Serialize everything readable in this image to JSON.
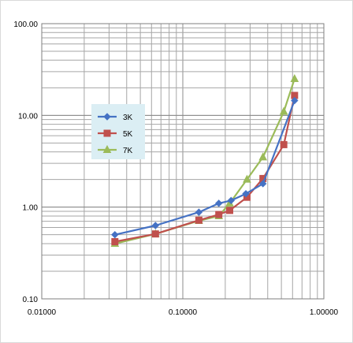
{
  "chart_data": {
    "type": "line",
    "title": "",
    "xlabel": "",
    "ylabel": "",
    "xscale": "log",
    "yscale": "log",
    "xlim": [
      0.01,
      1.0
    ],
    "ylim": [
      0.1,
      100.0
    ],
    "x_ticks": [
      "0.01000",
      "0.10000",
      "1.00000"
    ],
    "y_ticks": [
      "0.10",
      "1.00",
      "10.00",
      "100.00"
    ],
    "grid": true,
    "legend": {
      "placement": "center-left"
    },
    "series": [
      {
        "name": "3K",
        "color": "#4572c4",
        "marker": "diamond",
        "points": [
          [
            0.033,
            0.5
          ],
          [
            0.064,
            0.63
          ],
          [
            0.13,
            0.88
          ],
          [
            0.18,
            1.1
          ],
          [
            0.22,
            1.18
          ],
          [
            0.28,
            1.4
          ],
          [
            0.37,
            1.8
          ],
          [
            0.62,
            14.5
          ]
        ]
      },
      {
        "name": "5K",
        "color": "#c0504d",
        "marker": "square",
        "points": [
          [
            0.033,
            0.42
          ],
          [
            0.064,
            0.51
          ],
          [
            0.13,
            0.72
          ],
          [
            0.18,
            0.83
          ],
          [
            0.215,
            0.92
          ],
          [
            0.285,
            1.28
          ],
          [
            0.37,
            2.05
          ],
          [
            0.52,
            4.8
          ],
          [
            0.62,
            16.5
          ]
        ]
      },
      {
        "name": "7K",
        "color": "#9bbb59",
        "marker": "triangle",
        "points": [
          [
            0.033,
            0.4
          ],
          [
            0.064,
            0.51
          ],
          [
            0.13,
            0.71
          ],
          [
            0.18,
            0.8
          ],
          [
            0.215,
            1.1
          ],
          [
            0.285,
            2.0
          ],
          [
            0.37,
            3.5
          ],
          [
            0.52,
            11.0
          ],
          [
            0.62,
            25.0
          ]
        ]
      }
    ]
  }
}
